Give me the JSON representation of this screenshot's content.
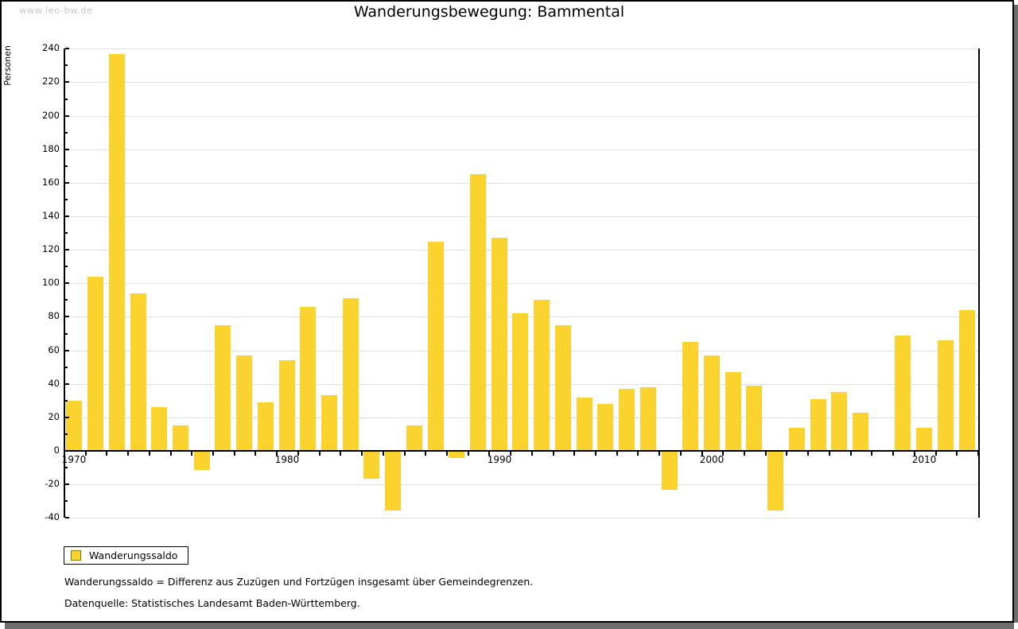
{
  "watermark": "www.leo-bw.de",
  "title": "Wanderungsbewegung: Bammental",
  "legend": {
    "label": "Wanderungssaldo"
  },
  "footnotes": [
    "Wanderungssaldo = Differenz aus Zuzügen und Fortzügen insgesamt über Gemeindegrenzen.",
    "Datenquelle: Statistisches Landesamt Baden-Württemberg."
  ],
  "chart_data": {
    "type": "bar",
    "title": "Wanderungsbewegung: Bammental",
    "xlabel": "",
    "ylabel": "Personen",
    "series_name": "Wanderungssaldo",
    "years": [
      1970,
      1971,
      1972,
      1973,
      1974,
      1975,
      1976,
      1977,
      1978,
      1979,
      1980,
      1981,
      1982,
      1983,
      1984,
      1985,
      1986,
      1987,
      1988,
      1989,
      1990,
      1991,
      1992,
      1993,
      1994,
      1995,
      1996,
      1997,
      1998,
      1999,
      2000,
      2001,
      2002,
      2003,
      2004,
      2005,
      2006,
      2007,
      2008,
      2009,
      2010,
      2011,
      2012
    ],
    "values": [
      30,
      104,
      237,
      94,
      26,
      15,
      -11,
      75,
      57,
      29,
      54,
      86,
      33,
      91,
      -16,
      -35,
      15,
      125,
      -4,
      165,
      127,
      82,
      90,
      75,
      32,
      28,
      37,
      38,
      -23,
      65,
      57,
      47,
      39,
      -35,
      14,
      31,
      35,
      23,
      0,
      69,
      14,
      66,
      84
    ],
    "ylim": [
      -40,
      240
    ],
    "yticks": [
      -40,
      -20,
      0,
      20,
      40,
      60,
      80,
      100,
      120,
      140,
      160,
      180,
      200,
      220,
      240
    ],
    "y_minor_step": 10,
    "xticks": [
      1970,
      1980,
      1990,
      2000,
      2010
    ],
    "x_minor_step": 1,
    "grid": true,
    "legend_position": "bottom-left",
    "bar_color": "#fbd32f",
    "grid_color": "#e1e1e1",
    "axis_color": "#000000"
  }
}
